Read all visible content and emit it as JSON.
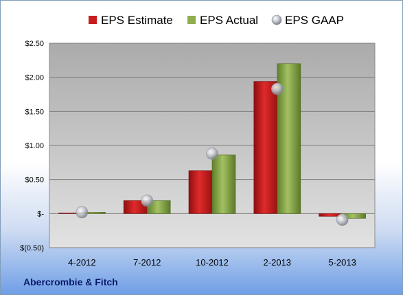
{
  "company": "Abercrombie & Fitch",
  "chart_data": {
    "type": "bar",
    "categories": [
      "4-2012",
      "7-2012",
      "10-2012",
      "2-2013",
      "5-2013"
    ],
    "series": [
      {
        "name": "EPS Estimate",
        "type": "bar",
        "color": "#cc1f1f",
        "values": [
          0.01,
          0.19,
          0.63,
          1.94,
          -0.04
        ]
      },
      {
        "name": "EPS Actual",
        "type": "bar",
        "color": "#8fae4e",
        "values": [
          0.02,
          0.19,
          0.86,
          2.2,
          -0.07
        ]
      },
      {
        "name": "EPS GAAP",
        "type": "marker",
        "color": "#b9bcc6",
        "values": [
          0.02,
          0.19,
          0.88,
          1.83,
          -0.09
        ]
      }
    ],
    "yticks": [
      {
        "value": 2.5,
        "label": "$2.50"
      },
      {
        "value": 2.0,
        "label": "$2.00"
      },
      {
        "value": 1.5,
        "label": "$1.50"
      },
      {
        "value": 1.0,
        "label": "$1.00"
      },
      {
        "value": 0.5,
        "label": "$0.50"
      },
      {
        "value": 0.0,
        "label": "$-"
      },
      {
        "value": -0.5,
        "label": "$(0.50)"
      }
    ],
    "ylim": [
      -0.5,
      2.5
    ],
    "legend_position": "top",
    "grid": true
  }
}
